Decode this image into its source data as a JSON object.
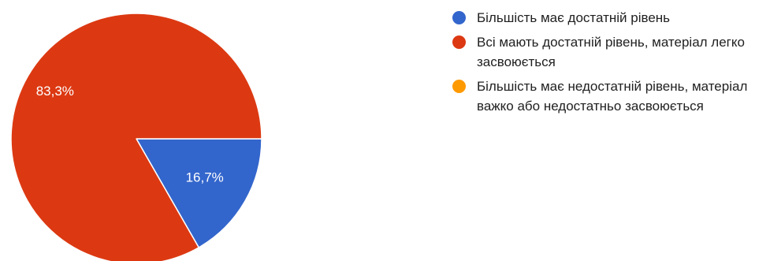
{
  "chart_data": {
    "type": "pie",
    "slices": [
      {
        "label": "Більшість має достатній рівень",
        "value": 16.7,
        "value_label": "16,7%",
        "color": "#3366cc"
      },
      {
        "label": "Всі мають достатній рівень, матеріал легко засвоюється",
        "value": 83.3,
        "value_label": "83,3%",
        "color": "#dc3912"
      },
      {
        "label": "Більшість має недостатній рівень, матеріал важко або недостатньо засвоюється",
        "value": 0,
        "value_label": "",
        "color": "#ff9900"
      }
    ],
    "legend_position": "right"
  }
}
